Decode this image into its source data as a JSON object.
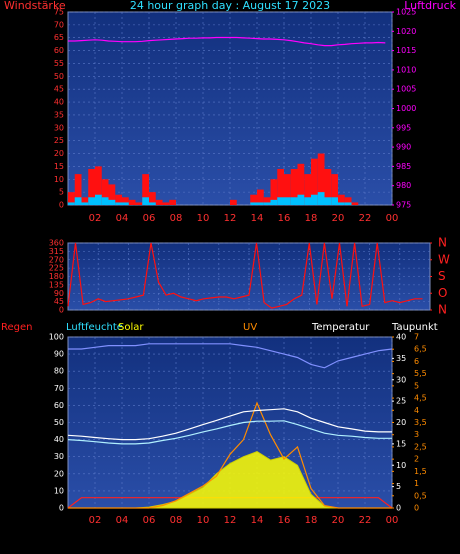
{
  "chart_data": [
    {
      "type": "line",
      "title": "24 hour graph day : August 17 2023",
      "ylabel": "Windstärke",
      "y2label": "Luftdruck",
      "x": [
        0,
        0.5,
        1,
        1.5,
        2,
        2.5,
        3,
        3.5,
        4,
        4.5,
        5,
        5.5,
        6,
        6.5,
        7,
        7.5,
        8,
        8.5,
        9,
        9.5,
        10,
        10.5,
        11,
        11.5,
        12,
        12.5,
        13,
        13.5,
        14,
        14.5,
        15,
        15.5,
        16,
        16.5,
        17,
        17.5,
        18,
        18.5,
        19,
        19.5,
        20,
        20.5,
        21,
        21.5,
        22,
        22.5,
        23,
        23.5
      ],
      "xlim": [
        0,
        24
      ],
      "xticks": [
        {
          "value": 2,
          "label": "02"
        },
        {
          "value": 4,
          "label": "04"
        },
        {
          "value": 6,
          "label": "06"
        },
        {
          "value": 8,
          "label": "08"
        },
        10,
        12,
        14,
        16,
        18,
        20,
        22,
        {
          "value": 24,
          "label": "00"
        }
      ],
      "ylim": [
        0,
        75
      ],
      "yticks": [
        0,
        5,
        10,
        15,
        20,
        25,
        30,
        35,
        40,
        45,
        50,
        55,
        60,
        65,
        70,
        75
      ],
      "y2lim": [
        975,
        1025
      ],
      "y2ticks": [
        975,
        980,
        985,
        990,
        995,
        1000,
        1005,
        1010,
        1015,
        1020,
        1025
      ],
      "axis_colors": {
        "y": "#ff3030",
        "y2": "#ff00ff"
      },
      "grid": true,
      "series": [
        {
          "name": "Windstärke",
          "type": "bar",
          "color": "#ff1010",
          "values": [
            5,
            12,
            3,
            14,
            15,
            10,
            8,
            4,
            3,
            2,
            1,
            12,
            5,
            2,
            1,
            2,
            0,
            0,
            0,
            0,
            0,
            0,
            0,
            0,
            2,
            0,
            0,
            4,
            6,
            3,
            10,
            14,
            12,
            14,
            16,
            12,
            18,
            20,
            14,
            12,
            4,
            3,
            1,
            0,
            0,
            0,
            0,
            0
          ]
        },
        {
          "type": "bar",
          "color": "#00c0ff",
          "values": [
            1,
            3,
            1,
            3,
            4,
            3,
            2,
            1,
            1,
            0,
            0,
            3,
            1,
            0,
            0,
            0,
            0,
            0,
            0,
            0,
            0,
            0,
            0,
            0,
            0,
            0,
            0,
            1,
            1,
            1,
            2,
            3,
            3,
            3,
            4,
            3,
            4,
            5,
            3,
            3,
            1,
            1,
            0,
            0,
            0,
            0,
            0,
            0
          ]
        },
        {
          "name": "Luftdruck",
          "type": "line",
          "axis": "y2",
          "color": "#ff00ff",
          "values": [
            1017.5,
            1017.5,
            1017.6,
            1017.7,
            1017.8,
            1017.7,
            1017.5,
            1017.4,
            1017.3,
            1017.3,
            1017.3,
            1017.4,
            1017.6,
            1017.7,
            1017.8,
            1017.9,
            1018,
            1018.1,
            1018.2,
            1018.2,
            1018.3,
            1018.3,
            1018.4,
            1018.4,
            1018.4,
            1018.4,
            1018.3,
            1018.2,
            1018.1,
            1018,
            1018,
            1017.9,
            1017.8,
            1017.6,
            1017.3,
            1017,
            1016.8,
            1016.5,
            1016.3,
            1016.3,
            1016.5,
            1016.6,
            1016.8,
            1016.9,
            1017,
            1017,
            1017.1,
            1017
          ]
        }
      ]
    },
    {
      "type": "line",
      "x": [
        0,
        0.5,
        1,
        1.5,
        2,
        2.5,
        3,
        3.5,
        4,
        4.5,
        5,
        5.5,
        6,
        6.5,
        7,
        7.5,
        8,
        8.5,
        9,
        9.5,
        10,
        10.5,
        11,
        11.5,
        12,
        12.5,
        13,
        13.5,
        14,
        14.5,
        15,
        15.5,
        16,
        16.5,
        17,
        17.5,
        18,
        18.5,
        19,
        19.5,
        20,
        20.5,
        21,
        21.5,
        22,
        22.5,
        23,
        23.5
      ],
      "xlim": [
        0,
        24
      ],
      "xticks": [
        2,
        4,
        6,
        8,
        10,
        12,
        14,
        16,
        18,
        20,
        22
      ],
      "ylim": [
        0,
        360
      ],
      "yticks": [
        0,
        45,
        90,
        135,
        180,
        225,
        270,
        315,
        360
      ],
      "y2lim": [
        0,
        360
      ],
      "y2ticks": [
        {
          "value": 0,
          "label": "N"
        },
        {
          "value": 90,
          "label": "O"
        },
        {
          "value": 180,
          "label": "S"
        },
        {
          "value": 270,
          "label": "W"
        },
        {
          "value": 360,
          "label": "N"
        }
      ],
      "axis_colors": {
        "y": "#ff3030",
        "y2": "#ff2020"
      },
      "grid": true,
      "series": [
        {
          "type": "line",
          "color": "#ff1010",
          "values": [
            20,
            360,
            30,
            40,
            60,
            45,
            50,
            55,
            60,
            70,
            80,
            360,
            150,
            80,
            90,
            70,
            60,
            50,
            60,
            65,
            70,
            70,
            60,
            70,
            80,
            360,
            40,
            10,
            20,
            30,
            60,
            80,
            360,
            30,
            360,
            60,
            360,
            20,
            360,
            20,
            30,
            360,
            40,
            50,
            40,
            50,
            60,
            60
          ]
        }
      ]
    },
    {
      "type": "line",
      "x": [
        0,
        1,
        2,
        3,
        4,
        5,
        6,
        7,
        8,
        9,
        10,
        11,
        12,
        13,
        14,
        15,
        16,
        17,
        18,
        19,
        20,
        21,
        22,
        23,
        24
      ],
      "xlim": [
        0,
        24
      ],
      "xticks": [
        {
          "value": 2,
          "label": "02"
        },
        {
          "value": 4,
          "label": "04"
        },
        {
          "value": 6,
          "label": "06"
        },
        {
          "value": 8,
          "label": "08"
        },
        10,
        12,
        14,
        16,
        18,
        20,
        22,
        {
          "value": 24,
          "label": "00"
        }
      ],
      "ylim": [
        0,
        100
      ],
      "yticks": [
        0,
        10,
        20,
        30,
        40,
        50,
        60,
        70,
        80,
        90,
        100
      ],
      "y2lim": [
        0,
        40
      ],
      "y2ticks": [
        0,
        5,
        10,
        15,
        20,
        25,
        30,
        35,
        40
      ],
      "y3lim": [
        0,
        7
      ],
      "y3ticks": [
        0,
        {
          "value": 0.5,
          "label": "0,5"
        },
        1,
        {
          "value": 1.5,
          "label": "1,5"
        },
        2,
        {
          "value": 2.5,
          "label": "2,5"
        },
        3,
        {
          "value": 3.5,
          "label": "3,5"
        },
        4,
        {
          "value": 4.5,
          "label": "4,5"
        },
        5,
        {
          "value": 5.5,
          "label": "5,5"
        },
        6,
        {
          "value": 6.5,
          "label": "6,5"
        },
        7
      ],
      "y4lim": [
        0,
        1000
      ],
      "axis_colors": {
        "y": "#ffffff",
        "y2": "#ffffff",
        "y3": "#ff8c00"
      },
      "grid": true,
      "series": [
        {
          "name": "Regen",
          "type": "line",
          "color": "#ff2020",
          "values": [
            0,
            6,
            6,
            6,
            6,
            6,
            6,
            6,
            6,
            6,
            6,
            6,
            6,
            6,
            6,
            6,
            6,
            6,
            6,
            6,
            6,
            6,
            6,
            6,
            0
          ]
        },
        {
          "name": "Luftfeuchte",
          "type": "line",
          "color": "#8090ff",
          "values": [
            93,
            93,
            94,
            95,
            95,
            95,
            96,
            96,
            96,
            96,
            96,
            96,
            96,
            95,
            94,
            92,
            90,
            88,
            84,
            82,
            86,
            88,
            90,
            92,
            93
          ]
        },
        {
          "name": "Solar",
          "type": "area",
          "axis": "y4",
          "color": "#ffff00",
          "values": [
            0,
            0,
            0,
            0,
            0,
            0,
            5,
            20,
            40,
            80,
            120,
            200,
            260,
            300,
            330,
            280,
            300,
            250,
            80,
            10,
            0,
            0,
            0,
            0,
            0
          ]
        },
        {
          "name": "UV",
          "type": "line",
          "axis": "y3",
          "color": "#ff8c00",
          "values": [
            0,
            0,
            0,
            0,
            0,
            0,
            0,
            0.1,
            0.3,
            0.6,
            0.9,
            1.3,
            2.2,
            2.8,
            4.3,
            3,
            2,
            2.5,
            0.8,
            0.1,
            0,
            0,
            0,
            0,
            0
          ]
        },
        {
          "name": "Temperatur",
          "type": "line",
          "axis": "y2",
          "color": "#ffffff",
          "values": [
            17,
            16.8,
            16.5,
            16.2,
            16,
            16,
            16.2,
            16.8,
            17.5,
            18.5,
            19.5,
            20.5,
            21.5,
            22.5,
            22.8,
            23,
            23.2,
            22.5,
            21,
            20,
            19,
            18.5,
            18,
            17.8,
            17.8
          ]
        },
        {
          "name": "Taupunkt",
          "type": "line",
          "axis": "y2",
          "color": "#b0f0ff",
          "values": [
            16,
            15.8,
            15.5,
            15.2,
            15,
            15,
            15.2,
            15.8,
            16.3,
            17,
            17.8,
            18.5,
            19.3,
            20,
            20.3,
            20.3,
            20.4,
            19.5,
            18.5,
            17.5,
            17,
            16.8,
            16.5,
            16.3,
            16.3
          ]
        }
      ]
    }
  ]
}
